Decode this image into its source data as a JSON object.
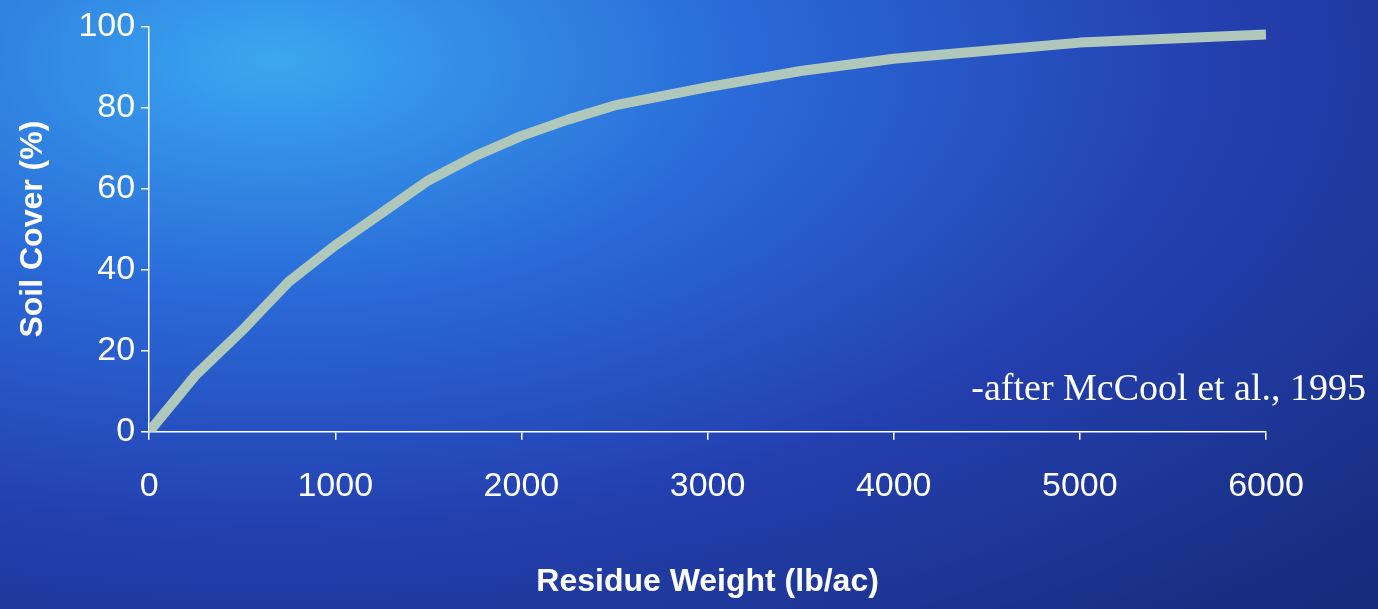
{
  "chart_data": {
    "type": "line",
    "xlabel": "Residue Weight (lb/ac)",
    "ylabel": "Soil Cover (%)",
    "x": [
      0,
      250,
      500,
      750,
      1000,
      1250,
      1500,
      1750,
      2000,
      2250,
      2500,
      3000,
      3500,
      4000,
      4500,
      5000,
      5500,
      6000
    ],
    "series": [
      {
        "color": "#b0c8bc",
        "values": [
          0,
          14,
          25,
          37,
          46,
          54,
          62,
          68,
          73,
          77,
          80.5,
          85,
          89,
          92,
          94,
          96,
          97,
          98
        ]
      }
    ],
    "xlim": [
      0,
      6000
    ],
    "xticks": [
      0,
      1000,
      2000,
      3000,
      4000,
      5000,
      6000
    ],
    "ylim": [
      0,
      100
    ],
    "yticks": [
      0,
      20,
      40,
      60,
      80,
      100
    ],
    "grid": false,
    "legend": false,
    "line_style": "solid",
    "annotations": [
      "-after McCool et al., 1995"
    ]
  }
}
